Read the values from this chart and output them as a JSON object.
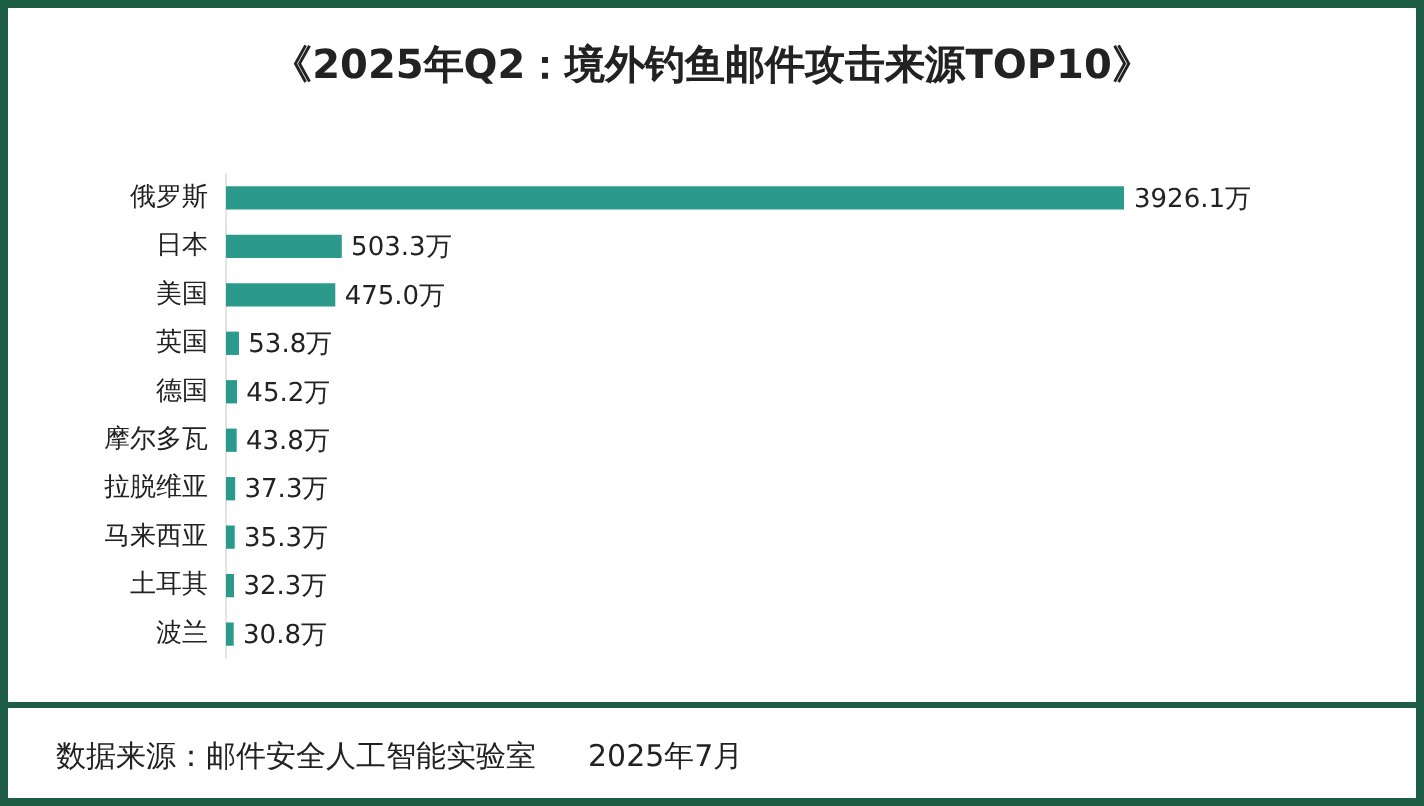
{
  "chart_data": {
    "type": "bar",
    "orientation": "horizontal",
    "title": "《2025年Q2：境外钓鱼邮件攻击来源TOP10》",
    "categories": [
      "俄罗斯",
      "日本",
      "美国",
      "英国",
      "德国",
      "摩尔多瓦",
      "拉脱维亚",
      "马来西亚",
      "土耳其",
      "波兰"
    ],
    "values": [
      3926.1,
      503.3,
      475.0,
      53.8,
      45.2,
      43.8,
      37.3,
      35.3,
      32.3,
      30.8
    ],
    "value_labels": [
      "3926.1万",
      "503.3万",
      "475.0万",
      "53.8万",
      "45.2万",
      "43.8万",
      "37.3万",
      "35.3万",
      "32.3万",
      "30.8万"
    ],
    "color": "#2b9a8c",
    "tick_labels": "y",
    "annotations": [
      "数据来源：邮件安全人工智能实验室",
      "2025年7月"
    ]
  }
}
